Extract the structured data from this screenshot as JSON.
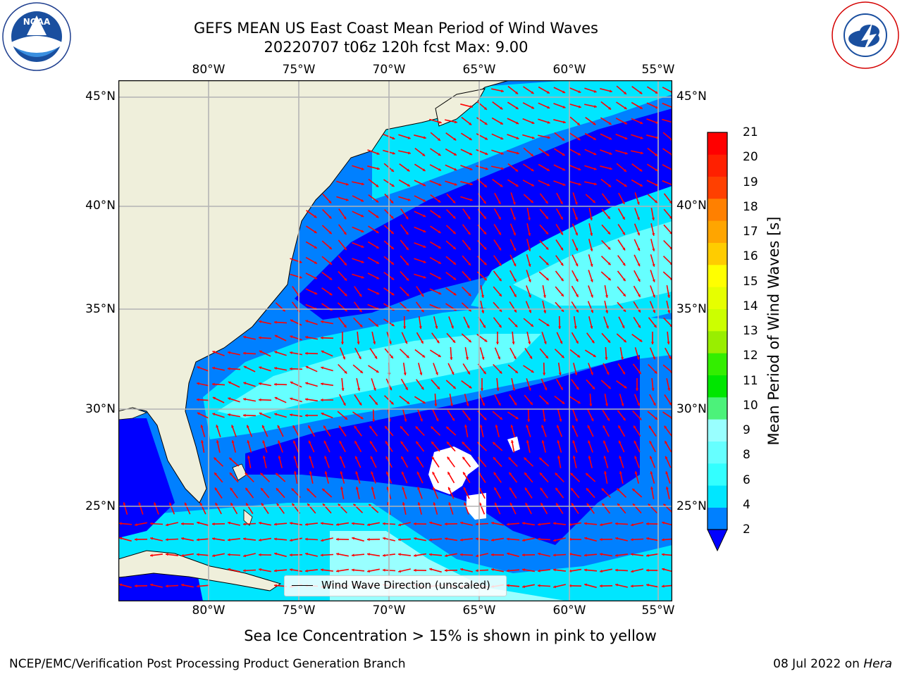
{
  "header": {
    "title_line1": "GEFS MEAN US East Coast Mean Period of Wind Waves",
    "title_line2": "20220707 t06z 120h fcst   Max: 9.00"
  },
  "map": {
    "lon_ticks": [
      "80°W",
      "75°W",
      "70°W",
      "65°W",
      "60°W",
      "55°W"
    ],
    "lat_ticks": [
      "45°N",
      "40°N",
      "35°N",
      "30°N",
      "25°N"
    ],
    "land_color": "#efefdb",
    "arrow_color": "#ff0000",
    "grid_color": "#b4b4b4"
  },
  "legend": {
    "label": "Wind Wave Direction (unscaled)"
  },
  "colorbar": {
    "label": "Mean Period of Wind Waves [s]",
    "tick_labels": [
      "2",
      "4",
      "6",
      "8",
      "9",
      "10",
      "11",
      "12",
      "13",
      "14",
      "15",
      "16",
      "17",
      "18",
      "19",
      "20",
      "21"
    ],
    "colors": [
      "#0080ff",
      "#00e6ff",
      "#33ffff",
      "#66ffff",
      "#99ffff",
      "#4cf27a",
      "#00e600",
      "#33ee00",
      "#99ee00",
      "#ccff00",
      "#e6ff00",
      "#ffff00",
      "#ffcc00",
      "#ffa500",
      "#ff8000",
      "#ff4000",
      "#ff2000",
      "#ff0000"
    ],
    "under_color": "#0000ff"
  },
  "chart_data": {
    "type": "heatmap",
    "title": "GEFS MEAN US East Coast Mean Period of Wind Waves",
    "subtitle": "20220707 t06z 120h fcst   Max: 9.00",
    "xlim": [
      "85°W",
      "54°W"
    ],
    "ylim": [
      "20.5°N",
      "46°N"
    ],
    "colorbar_range": [
      2,
      21
    ],
    "max_value": 9.0,
    "grid": true
  },
  "notes": {
    "sea_ice": "Sea Ice Concentration > 15% is shown in pink to yellow"
  },
  "footer": {
    "left": "NCEP/EMC/Verification Post Processing Product Generation Branch",
    "right_date": "08 Jul 2022 on ",
    "right_host": "Hera"
  },
  "logos": {
    "left": "NOAA",
    "right": "NATIONAL WEATHER SERVICE"
  }
}
